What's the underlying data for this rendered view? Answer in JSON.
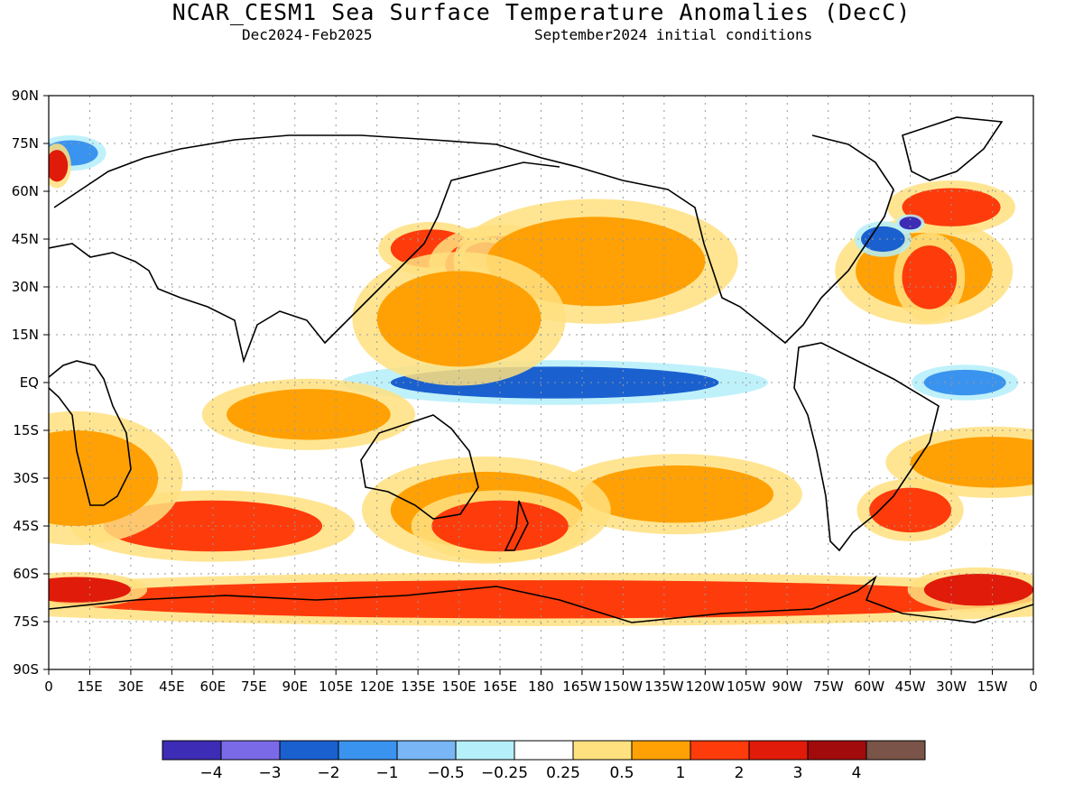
{
  "header": {
    "title": "NCAR_CESM1 Sea Surface Temperature Anomalies (DecC)",
    "period": "Dec2024-Feb2025",
    "init": "September2024 initial conditions"
  },
  "map": {
    "projection": "equirectangular",
    "lon_range": [
      0,
      360
    ],
    "lat_range": [
      -90,
      90
    ],
    "grid": "dotted",
    "lat_labels": [
      "90N",
      "75N",
      "60N",
      "45N",
      "30N",
      "15N",
      "EQ",
      "15S",
      "30S",
      "45S",
      "60S",
      "75S",
      "90S"
    ],
    "lon_labels": [
      "0",
      "15E",
      "30E",
      "45E",
      "60E",
      "75E",
      "90E",
      "105E",
      "120E",
      "135E",
      "150E",
      "165E",
      "180",
      "165W",
      "150W",
      "135W",
      "120W",
      "105W",
      "90W",
      "75W",
      "60W",
      "45W",
      "30W",
      "15W",
      "0"
    ]
  },
  "colorbar": {
    "colors": [
      "#3d2cb5",
      "#7b6ae8",
      "#1a60cf",
      "#3a93ef",
      "#78b6f5",
      "#b4effa",
      "#ffffff",
      "#ffe17f",
      "#ffa104",
      "#fe3b0b",
      "#e01b0a",
      "#a20b0b",
      "#7a5448"
    ],
    "labels": [
      "−4",
      "−3",
      "−2",
      "−1",
      "−0.5",
      "−0.25",
      "0.25",
      "0.5",
      "1",
      "2",
      "3",
      "4"
    ]
  },
  "anomaly_fields": [
    {
      "lon": 185,
      "lat": 0,
      "rx": 60,
      "ry": 5,
      "level": -2
    },
    {
      "lon": 140,
      "lat": 42,
      "rx": 15,
      "ry": 6,
      "level": 2
    },
    {
      "lon": 165,
      "lat": 37,
      "rx": 20,
      "ry": 9,
      "level": 2
    },
    {
      "lon": 160,
      "lat": 40,
      "rx": 8,
      "ry": 4,
      "level": 3
    },
    {
      "lon": 200,
      "lat": 38,
      "rx": 40,
      "ry": 14,
      "level": 1
    },
    {
      "lon": 150,
      "lat": 20,
      "rx": 30,
      "ry": 15,
      "level": 1
    },
    {
      "lon": 95,
      "lat": -10,
      "rx": 30,
      "ry": 8,
      "level": 1
    },
    {
      "lon": 230,
      "lat": -35,
      "rx": 35,
      "ry": 9,
      "level": 1
    },
    {
      "lon": 160,
      "lat": -40,
      "rx": 35,
      "ry": 12,
      "level": 1
    },
    {
      "lon": 165,
      "lat": -45,
      "rx": 25,
      "ry": 8,
      "level": 2
    },
    {
      "lon": 60,
      "lat": -45,
      "rx": 40,
      "ry": 8,
      "level": 2
    },
    {
      "lon": 180,
      "lat": -68,
      "rx": 180,
      "ry": 6,
      "level": 2
    },
    {
      "lon": 10,
      "lat": -65,
      "rx": 20,
      "ry": 4,
      "level": 3
    },
    {
      "lon": 340,
      "lat": -65,
      "rx": 20,
      "ry": 5,
      "level": 3
    },
    {
      "lon": 320,
      "lat": 35,
      "rx": 25,
      "ry": 12,
      "level": 1
    },
    {
      "lon": 322,
      "lat": 33,
      "rx": 10,
      "ry": 10,
      "level": 2
    },
    {
      "lon": 330,
      "lat": 55,
      "rx": 18,
      "ry": 6,
      "level": 2
    },
    {
      "lon": 305,
      "lat": 45,
      "rx": 8,
      "ry": 4,
      "level": -2
    },
    {
      "lon": 315,
      "lat": 50,
      "rx": 4,
      "ry": 2,
      "level": -4
    },
    {
      "lon": 335,
      "lat": 0,
      "rx": 15,
      "ry": 4,
      "level": -1
    },
    {
      "lon": 315,
      "lat": -40,
      "rx": 15,
      "ry": 7,
      "level": 2
    },
    {
      "lon": 8,
      "lat": 72,
      "rx": 10,
      "ry": 4,
      "level": -1
    },
    {
      "lon": 3,
      "lat": 68,
      "rx": 4,
      "ry": 5,
      "level": 3
    },
    {
      "lon": 10,
      "lat": -30,
      "rx": 30,
      "ry": 15,
      "level": 1
    },
    {
      "lon": 345,
      "lat": -25,
      "rx": 30,
      "ry": 8,
      "level": 1
    }
  ]
}
